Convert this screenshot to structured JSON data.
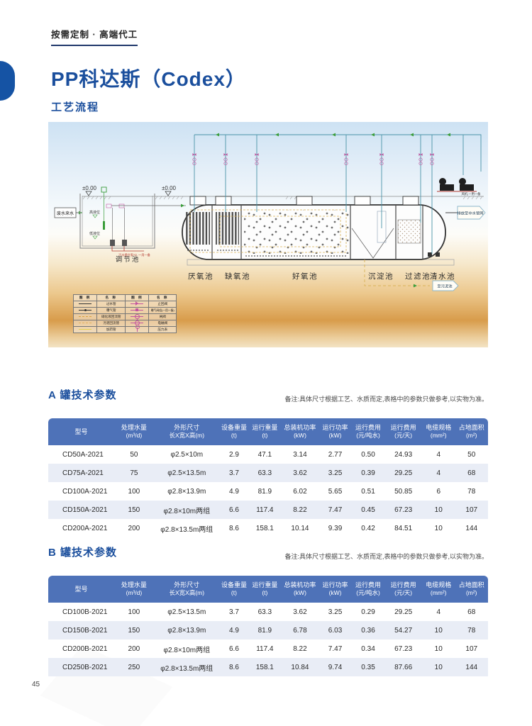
{
  "page": {
    "tagline": "按需定制 · 高端代工",
    "title": "PP科达斯（Codex）",
    "subtitle": "工艺流程",
    "page_number": "45"
  },
  "diagram": {
    "ground_level_label": "±0.00",
    "inlet_label": "废水来水",
    "outlet_label": "排放至中水管网",
    "to_sludge_label": "至污泥池",
    "blower_label": "风机,一用一备",
    "pump_note": "污水提升泵×2, 一用一备",
    "high_level": "高液位",
    "low_level": "低液位",
    "regulating_tank": "调节池",
    "sections": [
      "厌氧池",
      "缺氧池",
      "好氧池",
      "沉淀池",
      "过滤池",
      "清水池"
    ],
    "legend": {
      "headers": [
        "图 例",
        "名 称",
        "图 例",
        "名 称"
      ],
      "rows": [
        {
          "left": "过水管",
          "right": "止回阀"
        },
        {
          "left": "曝气管",
          "right": "曝气阀组(一用一备)"
        },
        {
          "left": "硝化液回流管",
          "right": "闸阀"
        },
        {
          "left": "污泥回流管",
          "right": "电磁阀"
        },
        {
          "left": "加药管",
          "right": "压力表"
        }
      ]
    }
  },
  "sectionA": {
    "title": "A 罐技术参数",
    "note": "备注:具体尺寸根据工艺、水质而定,表格中的参数只做参考,以实物为准。"
  },
  "sectionB": {
    "title": "B 罐技术参数",
    "note": "备注:具体尺寸根据工艺、水质而定,表格中的参数只做参考,以实物为准。"
  },
  "columns": [
    {
      "label": "型号",
      "unit": ""
    },
    {
      "label": "处理水量",
      "unit": "(m³/d)"
    },
    {
      "label": "外形尺寸",
      "unit": "长X宽X高(m)"
    },
    {
      "label": "设备重量",
      "unit": "(t)"
    },
    {
      "label": "运行重量",
      "unit": "(t)"
    },
    {
      "label": "总装机功率",
      "unit": "(kW)"
    },
    {
      "label": "运行功率",
      "unit": "(kW)"
    },
    {
      "label": "运行费用",
      "unit": "(元/吨水)"
    },
    {
      "label": "运行费用",
      "unit": "(元/天)"
    },
    {
      "label": "电缆规格",
      "unit": "(mm²)"
    },
    {
      "label": "占地面积",
      "unit": "(m²)"
    }
  ],
  "tableA": {
    "rows": [
      [
        "CD50A-2021",
        "50",
        "φ2.5×10m",
        "2.9",
        "47.1",
        "3.14",
        "2.77",
        "0.50",
        "24.93",
        "4",
        "50"
      ],
      [
        "CD75A-2021",
        "75",
        "φ2.5×13.5m",
        "3.7",
        "63.3",
        "3.62",
        "3.25",
        "0.39",
        "29.25",
        "4",
        "68"
      ],
      [
        "CD100A-2021",
        "100",
        "φ2.8×13.9m",
        "4.9",
        "81.9",
        "6.02",
        "5.65",
        "0.51",
        "50.85",
        "6",
        "78"
      ],
      [
        "CD150A-2021",
        "150",
        "φ2.8×10m两组",
        "6.6",
        "117.4",
        "8.22",
        "7.47",
        "0.45",
        "67.23",
        "10",
        "107"
      ],
      [
        "CD200A-2021",
        "200",
        "φ2.8×13.5m两组",
        "8.6",
        "158.1",
        "10.14",
        "9.39",
        "0.42",
        "84.51",
        "10",
        "144"
      ]
    ]
  },
  "tableB": {
    "rows": [
      [
        "CD100B-2021",
        "100",
        "φ2.5×13.5m",
        "3.7",
        "63.3",
        "3.62",
        "3.25",
        "0.29",
        "29.25",
        "4",
        "68"
      ],
      [
        "CD150B-2021",
        "150",
        "φ2.8×13.9m",
        "4.9",
        "81.9",
        "6.78",
        "6.03",
        "0.36",
        "54.27",
        "10",
        "78"
      ],
      [
        "CD200B-2021",
        "200",
        "φ2.8×10m两组",
        "6.6",
        "117.4",
        "8.22",
        "7.47",
        "0.34",
        "67.23",
        "10",
        "107"
      ],
      [
        "CD250B-2021",
        "250",
        "φ2.8×13.5m两组",
        "8.6",
        "158.1",
        "10.84",
        "9.74",
        "0.35",
        "87.66",
        "10",
        "144"
      ]
    ]
  },
  "colors": {
    "accent_blue": "#1b4f9d",
    "table_header_blue": "#4e72b8",
    "row_stripe": "#e9edf6",
    "pipe_teal": "#4a93a8",
    "valve_magenta": "#c2559f",
    "recirc_dash": "#d9b257",
    "sand_orange": "#d89c4b"
  }
}
